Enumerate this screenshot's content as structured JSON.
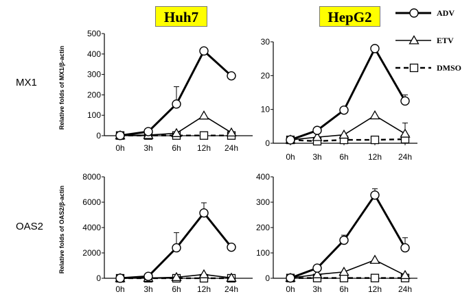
{
  "columns": [
    {
      "title": "Huh7"
    },
    {
      "title": "HepG2"
    }
  ],
  "rows": [
    {
      "label": "MX1"
    },
    {
      "label": "OAS2"
    }
  ],
  "ylabels": {
    "mx1": "Relative folds of MX1/β-actin",
    "oas2": "Relative folds of OAS2/β-actin"
  },
  "legend": [
    {
      "name": "ADV",
      "marker": "circle",
      "dash": "solid",
      "stroke_color": "#000000"
    },
    {
      "name": "ETV",
      "marker": "triangle",
      "dash": "solid",
      "stroke_color": "#000000"
    },
    {
      "name": "DMSO",
      "marker": "square",
      "dash": "dashed",
      "stroke_color": "#000000"
    }
  ],
  "chart_data": [
    {
      "type": "line",
      "id": "mx1-huh7",
      "categories": [
        "0h",
        "3h",
        "6h",
        "12h",
        "24h"
      ],
      "yticks": [
        "0",
        "100",
        "200",
        "300",
        "400",
        "500"
      ],
      "ylim": [
        0,
        500
      ],
      "series": [
        {
          "name": "ADV",
          "values": [
            1,
            20,
            155,
            415,
            293
          ],
          "err": [
            0,
            0,
            85,
            0,
            0
          ]
        },
        {
          "name": "ETV",
          "values": [
            1,
            3,
            12,
            98,
            15
          ],
          "err": [
            0,
            0,
            0,
            0,
            0
          ]
        },
        {
          "name": "DMSO",
          "values": [
            1,
            1,
            1,
            1,
            1
          ],
          "err": [
            0,
            0,
            0,
            0,
            0
          ]
        }
      ]
    },
    {
      "type": "line",
      "id": "mx1-hepg2",
      "categories": [
        "0h",
        "3h",
        "6h",
        "12h",
        "24h"
      ],
      "yticks": [
        "0",
        "10",
        "20",
        "30"
      ],
      "ylim": [
        0,
        30
      ],
      "series": [
        {
          "name": "ADV",
          "values": [
            1,
            3.8,
            9.8,
            28,
            12.5
          ],
          "err": [
            0,
            0,
            0,
            0,
            1.8
          ]
        },
        {
          "name": "ETV",
          "values": [
            1,
            1.8,
            2.5,
            8.2,
            2.8
          ],
          "err": [
            0,
            0,
            0,
            0,
            3.2
          ]
        },
        {
          "name": "DMSO",
          "values": [
            1,
            0.6,
            1,
            1,
            1.2
          ],
          "err": [
            0,
            0,
            0,
            0,
            0
          ]
        }
      ]
    },
    {
      "type": "line",
      "id": "oas2-huh7",
      "categories": [
        "0h",
        "3h",
        "6h",
        "12h",
        "24h"
      ],
      "yticks": [
        "0",
        "2000",
        "4000",
        "6000",
        "8000"
      ],
      "ylim": [
        0,
        8000
      ],
      "series": [
        {
          "name": "ADV",
          "values": [
            1,
            150,
            2400,
            5150,
            2450
          ],
          "err": [
            0,
            0,
            1200,
            800,
            0
          ]
        },
        {
          "name": "ETV",
          "values": [
            1,
            20,
            80,
            300,
            30
          ],
          "err": [
            0,
            0,
            0,
            0,
            0
          ]
        },
        {
          "name": "DMSO",
          "values": [
            1,
            1,
            1,
            1,
            1
          ],
          "err": [
            0,
            0,
            0,
            0,
            0
          ]
        }
      ]
    },
    {
      "type": "line",
      "id": "oas2-hepg2",
      "categories": [
        "0h",
        "3h",
        "6h",
        "12h",
        "24h"
      ],
      "yticks": [
        "0",
        "100",
        "200",
        "300",
        "400"
      ],
      "ylim": [
        0,
        400
      ],
      "series": [
        {
          "name": "ADV",
          "values": [
            1,
            40,
            150,
            328,
            120
          ],
          "err": [
            0,
            0,
            20,
            25,
            40
          ]
        },
        {
          "name": "ETV",
          "values": [
            1,
            15,
            25,
            72,
            12
          ],
          "err": [
            0,
            0,
            0,
            0,
            0
          ]
        },
        {
          "name": "DMSO",
          "values": [
            1,
            1,
            1,
            1,
            1
          ],
          "err": [
            0,
            0,
            0,
            0,
            0
          ]
        }
      ]
    }
  ]
}
